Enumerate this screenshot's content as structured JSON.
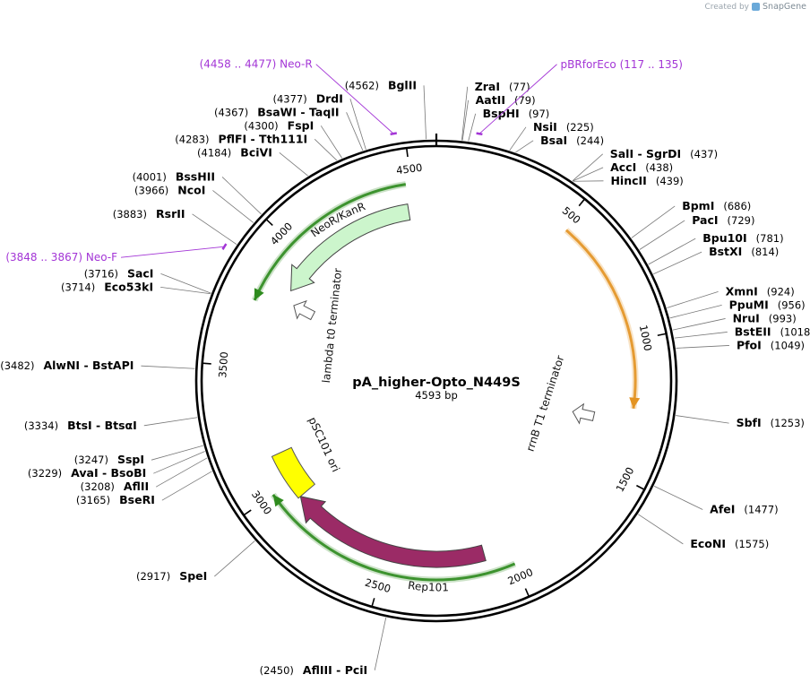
{
  "credit": {
    "prefix": "Created by",
    "brand": "SnapGene",
    "logo_icon": "snapgene-logo-icon"
  },
  "plasmid": {
    "name": "pA_higher-Opto_N449S",
    "length_bp": 4593,
    "length_label": "4593 bp"
  },
  "ticks": [
    {
      "pos": 500,
      "label": "500"
    },
    {
      "pos": 1000,
      "label": "1000"
    },
    {
      "pos": 1500,
      "label": "1500"
    },
    {
      "pos": 2000,
      "label": "2000"
    },
    {
      "pos": 2500,
      "label": "2500"
    },
    {
      "pos": 3000,
      "label": "3000"
    },
    {
      "pos": 3500,
      "label": "3500"
    },
    {
      "pos": 4000,
      "label": "4000"
    },
    {
      "pos": 4500,
      "label": "4500"
    }
  ],
  "sites": [
    {
      "name": "BglII",
      "pos": 4562,
      "pos_label": "(4562)"
    },
    {
      "name": "ZraI",
      "pos": 77,
      "pos_label": "(77)"
    },
    {
      "name": "AatII",
      "pos": 79,
      "pos_label": "(79)"
    },
    {
      "name": "BspHI",
      "pos": 97,
      "pos_label": "(97)"
    },
    {
      "name": "NsiI",
      "pos": 225,
      "pos_label": "(225)"
    },
    {
      "name": "BsaI",
      "pos": 244,
      "pos_label": "(244)"
    },
    {
      "name": "SalI  -  SgrDI",
      "pos": 437,
      "pos_label": "(437)"
    },
    {
      "name": "AccI",
      "pos": 438,
      "pos_label": "(438)"
    },
    {
      "name": "HincII",
      "pos": 439,
      "pos_label": "(439)"
    },
    {
      "name": "BpmI",
      "pos": 686,
      "pos_label": "(686)"
    },
    {
      "name": "PacI",
      "pos": 729,
      "pos_label": "(729)"
    },
    {
      "name": "Bpu10I",
      "pos": 781,
      "pos_label": "(781)"
    },
    {
      "name": "BstXI",
      "pos": 814,
      "pos_label": "(814)"
    },
    {
      "name": "XmnI",
      "pos": 924,
      "pos_label": "(924)"
    },
    {
      "name": "PpuMI",
      "pos": 956,
      "pos_label": "(956)"
    },
    {
      "name": "NruI",
      "pos": 993,
      "pos_label": "(993)"
    },
    {
      "name": "BstEII",
      "pos": 1018,
      "pos_label": "(1018)"
    },
    {
      "name": "PfoI",
      "pos": 1049,
      "pos_label": "(1049)"
    },
    {
      "name": "SbfI",
      "pos": 1253,
      "pos_label": "(1253)"
    },
    {
      "name": "AfeI",
      "pos": 1477,
      "pos_label": "(1477)"
    },
    {
      "name": "EcoNI",
      "pos": 1575,
      "pos_label": "(1575)"
    },
    {
      "name": "AflIII  -  PciI",
      "pos": 2450,
      "pos_label": "(2450)"
    },
    {
      "name": "SpeI",
      "pos": 2917,
      "pos_label": "(2917)"
    },
    {
      "name": "BseRI",
      "pos": 3165,
      "pos_label": "(3165)"
    },
    {
      "name": "AflII",
      "pos": 3208,
      "pos_label": "(3208)"
    },
    {
      "name": "AvaI  -  BsoBI",
      "pos": 3229,
      "pos_label": "(3229)"
    },
    {
      "name": "SspI",
      "pos": 3247,
      "pos_label": "(3247)"
    },
    {
      "name": "BtsI  -  BtsαI",
      "pos": 3334,
      "pos_label": "(3334)"
    },
    {
      "name": "AlwNI  -  BstAPI",
      "pos": 3482,
      "pos_label": "(3482)"
    },
    {
      "name": "Eco53kI",
      "pos": 3714,
      "pos_label": "(3714)"
    },
    {
      "name": "SacI",
      "pos": 3716,
      "pos_label": "(3716)"
    },
    {
      "name": "RsrII",
      "pos": 3883,
      "pos_label": "(3883)"
    },
    {
      "name": "NcoI",
      "pos": 3966,
      "pos_label": "(3966)"
    },
    {
      "name": "BssHII",
      "pos": 4001,
      "pos_label": "(4001)"
    },
    {
      "name": "BciVI",
      "pos": 4184,
      "pos_label": "(4184)"
    },
    {
      "name": "PflFI  -  Tth111I",
      "pos": 4283,
      "pos_label": "(4283)"
    },
    {
      "name": "FspI",
      "pos": 4300,
      "pos_label": "(4300)"
    },
    {
      "name": "BsaWI  -  TaqII",
      "pos": 4367,
      "pos_label": "(4367)"
    },
    {
      "name": "DrdI",
      "pos": 4377,
      "pos_label": "(4377)"
    }
  ],
  "primers": [
    {
      "name": "Neo-R",
      "range_label": "(4458 .. 4477)",
      "start": 4458,
      "end": 4477
    },
    {
      "name": "pBRforEco",
      "range_label": "(117 .. 135)",
      "start": 117,
      "end": 135
    },
    {
      "name": "Neo-F",
      "range_label": "(3848 .. 3867)",
      "start": 3848,
      "end": 3867
    }
  ],
  "features": [
    {
      "name": "NeoR/KanR",
      "type": "CDS",
      "start": 3850,
      "end": 4475,
      "strand": -1,
      "color": "#ccf5cc"
    },
    {
      "name": "Rep101",
      "type": "CDS",
      "start": 2100,
      "end": 2930,
      "strand": 1,
      "color": "#9b2b66"
    },
    {
      "name": "pSC101 ori",
      "type": "rep_origin",
      "start": 2930,
      "end": 3130,
      "strand": 0,
      "color": "#ffff00"
    },
    {
      "name": "lambda t0 terminator",
      "type": "terminator",
      "pos": 3800,
      "strand": -1
    },
    {
      "name": "rrnB T1 terminator",
      "type": "terminator",
      "pos": 1310,
      "strand": 1
    }
  ],
  "orfs": [
    {
      "start": 3750,
      "end": 4480,
      "strand": -1,
      "color": "#2e8b1e"
    },
    {
      "start": 520,
      "end": 1250,
      "strand": 1,
      "color": "#e39322"
    },
    {
      "start": 2000,
      "end": 3000,
      "strand": 1,
      "color": "#2e8b1e"
    }
  ],
  "colors": {
    "backbone": "#000000",
    "primer": "#a335d6",
    "leader": "#777777"
  }
}
